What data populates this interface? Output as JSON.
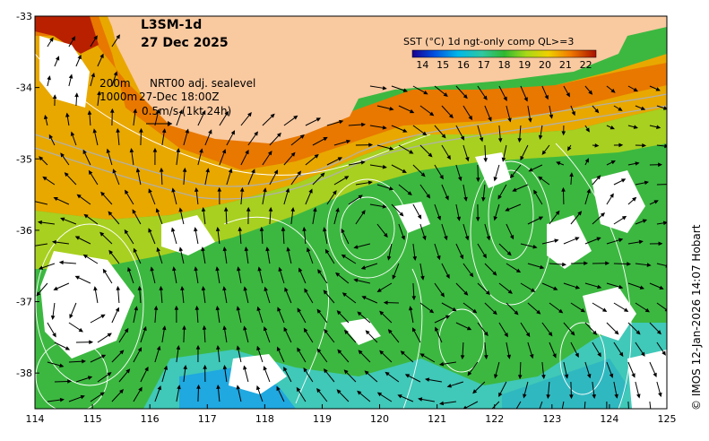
{
  "map": {
    "title_line1": "L3SM-1d",
    "title_line2": "27 Dec 2025",
    "legend_line1_depth": "200m",
    "legend_line1_text": "NRT00 adj. sealevel",
    "legend_line2_depth": "1000m",
    "legend_line2_text": "27-Dec 18:00Z",
    "legend_line3_text": "0.5m/s (1kt 24h)",
    "colorbar_title": "SST (°C) 1d ngt-only comp QL>=3",
    "colorbar_ticks": [
      "14",
      "15",
      "16",
      "17",
      "18",
      "19",
      "20",
      "21",
      "22"
    ],
    "colorbar_range": [
      13.5,
      22.5
    ],
    "x_ticks": [
      "114",
      "115",
      "116",
      "117",
      "118",
      "119",
      "120",
      "121",
      "122",
      "123",
      "124",
      "125"
    ],
    "y_ticks": [
      "-33",
      "-34",
      "-35",
      "-36",
      "-37",
      "-38"
    ],
    "lon_range": [
      114,
      125
    ],
    "lat_range": [
      -38.5,
      -33
    ],
    "credit": "© IMOS 12-Jan-2026 14:07 Hobart",
    "colors": {
      "land": "#f9c9a0",
      "no_data": "#ffffff",
      "contour": "#ffffff",
      "isobath": "#b0b0b0",
      "arrow": "#000000"
    }
  }
}
